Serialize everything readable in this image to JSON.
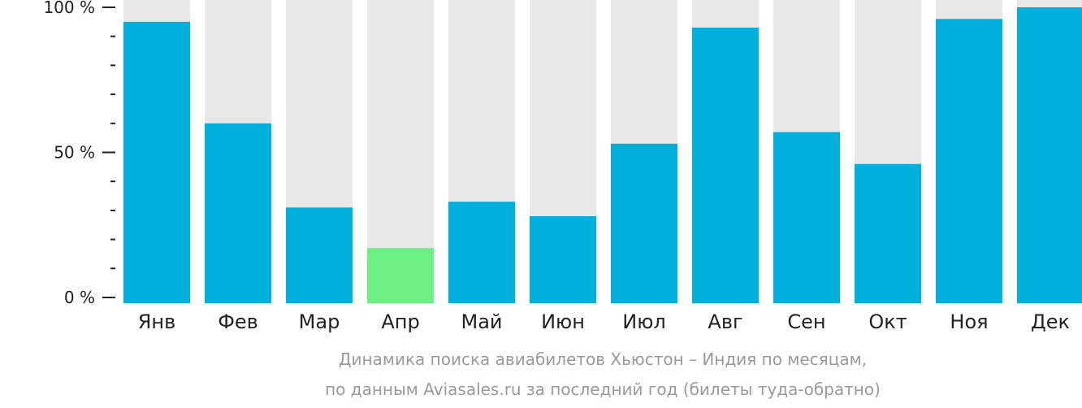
{
  "chart_data": {
    "type": "bar",
    "categories": [
      "Янв",
      "Фев",
      "Мар",
      "Апр",
      "Май",
      "Июн",
      "Июл",
      "Авг",
      "Сен",
      "Окт",
      "Ноя",
      "Дек"
    ],
    "values": [
      95,
      60,
      31,
      17,
      33,
      28,
      53,
      93,
      57,
      46,
      96,
      100
    ],
    "ylim": [
      0,
      100
    ],
    "yticks": [
      {
        "value": 0,
        "label": "0 %"
      },
      {
        "value": 50,
        "label": "50 %"
      },
      {
        "value": 100,
        "label": "100 %"
      }
    ],
    "minor_tick_step": 10,
    "highlight_index": 3,
    "colors": {
      "bar": "#00b0dc",
      "highlight": "#6cf084",
      "background_bar": "#e8e8e8",
      "axis": "#222222"
    }
  },
  "caption": {
    "line1": "Динамика поиска авиабилетов Хьюстон – Индия по месяцам,",
    "line2": "по данным Aviasales.ru за последний год (билеты туда-обратно)"
  }
}
